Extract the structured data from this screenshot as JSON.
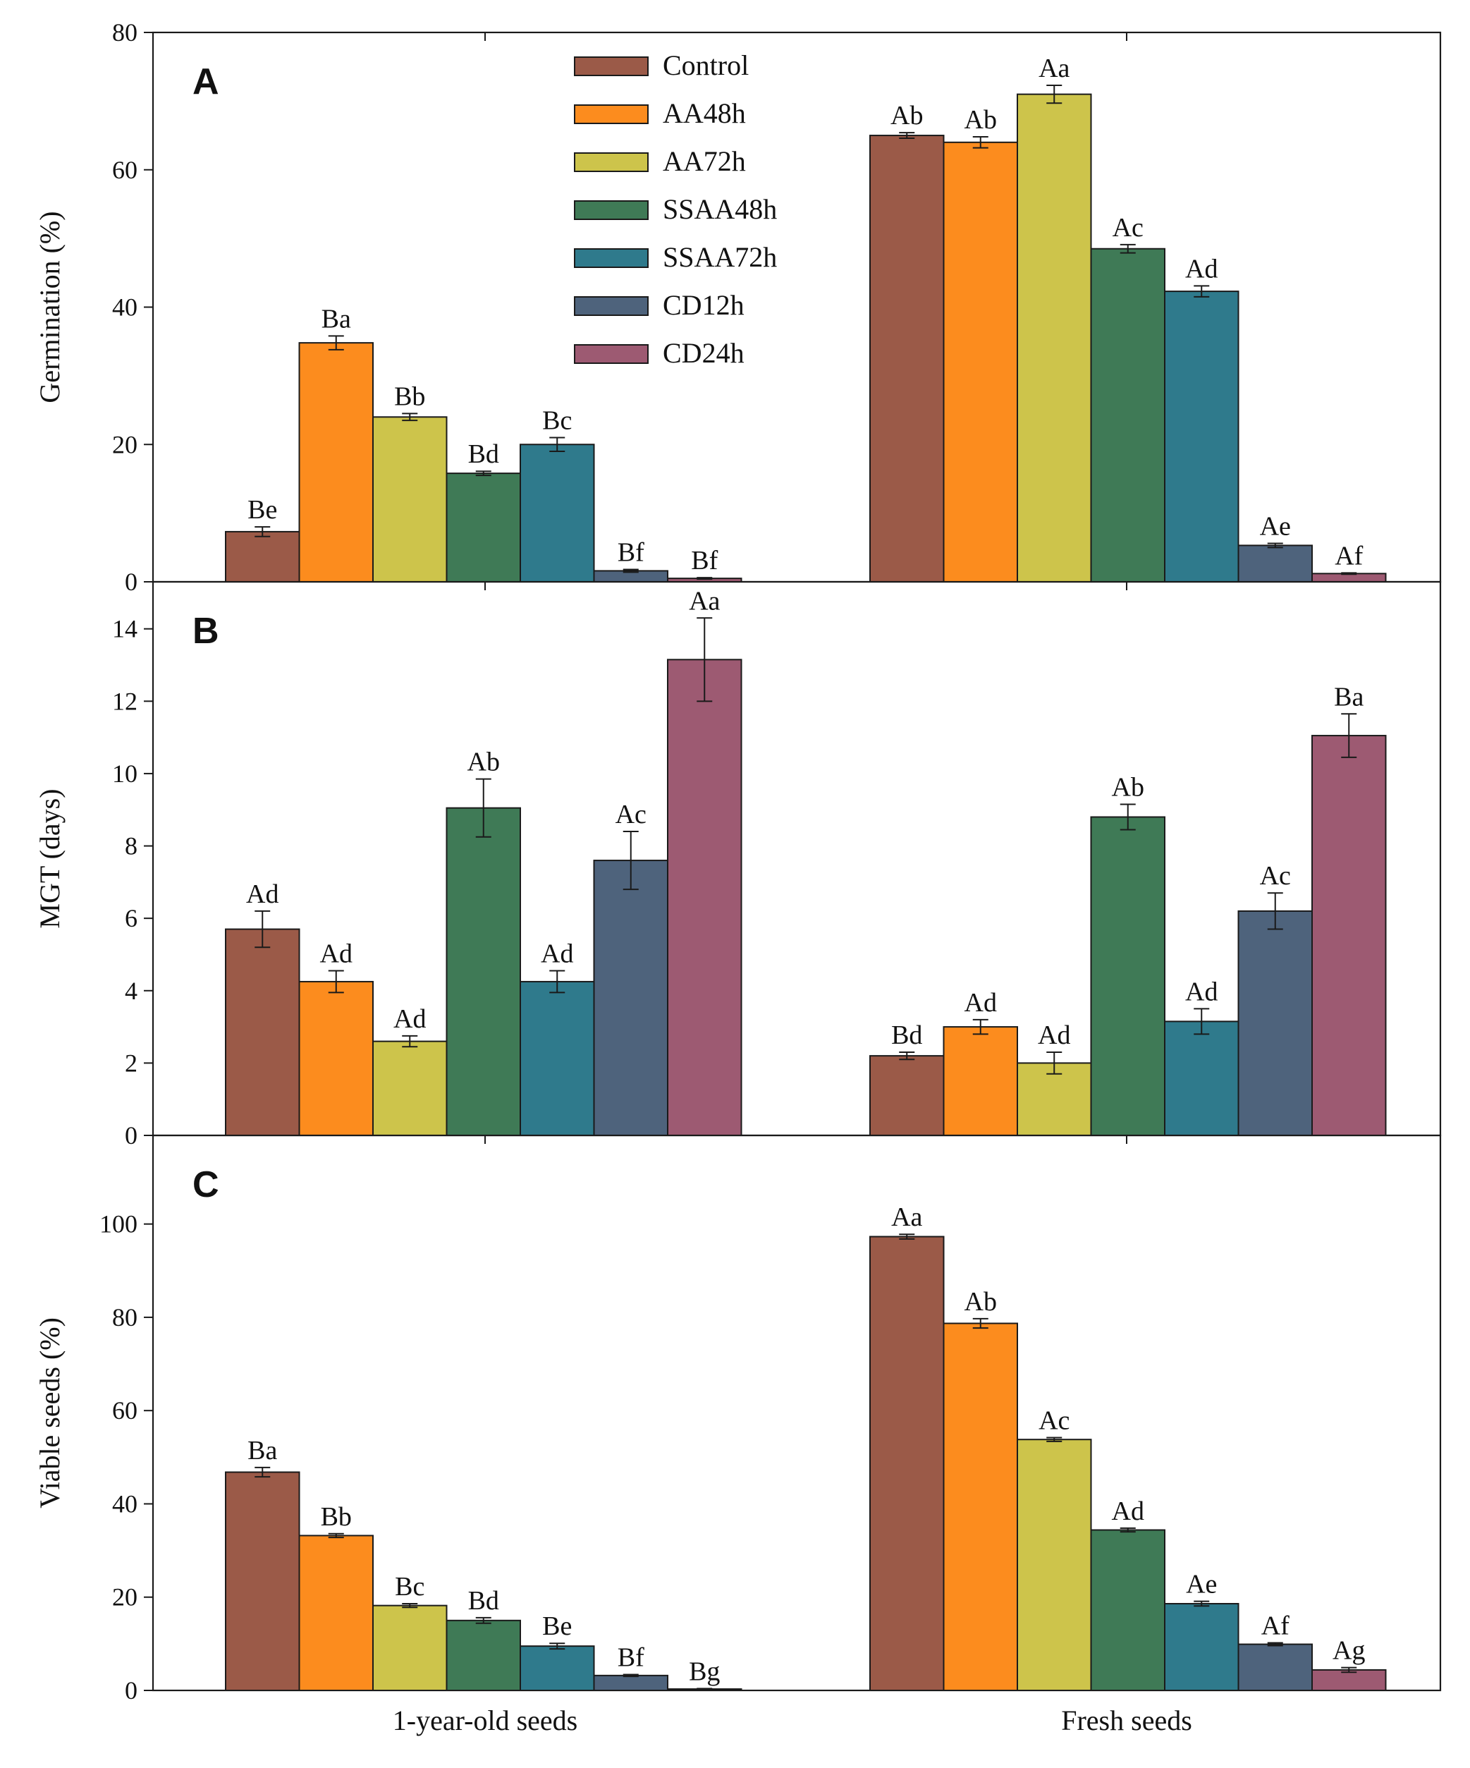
{
  "chart_data": [
    {
      "type": "bar",
      "panel": "A",
      "ylabel": "Germination (%)",
      "xlabel": "",
      "ylim": [
        0,
        80
      ],
      "yticks": [
        0,
        20,
        40,
        60,
        80
      ],
      "show_xlabels": false,
      "categories": [
        "1-year-old seeds",
        "Fresh seeds"
      ],
      "legend": {
        "placement": "top-center"
      },
      "series": [
        {
          "name": "Control",
          "values": [
            7.3,
            65.0
          ],
          "errors": [
            0.7,
            0.4
          ],
          "letters": [
            "Be",
            "Ab"
          ]
        },
        {
          "name": "AA48h",
          "values": [
            34.8,
            64.0
          ],
          "errors": [
            1.0,
            0.8
          ],
          "letters": [
            "Ba",
            "Ab"
          ]
        },
        {
          "name": "AA72h",
          "values": [
            24.0,
            71.0
          ],
          "errors": [
            0.5,
            1.3
          ],
          "letters": [
            "Bb",
            "Aa"
          ]
        },
        {
          "name": "SSAA48h",
          "values": [
            15.8,
            48.5
          ],
          "errors": [
            0.3,
            0.6
          ],
          "letters": [
            "Bd",
            "Ac"
          ]
        },
        {
          "name": "SSAA72h",
          "values": [
            20.0,
            42.3
          ],
          "errors": [
            1.0,
            0.8
          ],
          "letters": [
            "Bc",
            "Ad"
          ]
        },
        {
          "name": "CD12h",
          "values": [
            1.6,
            5.3
          ],
          "errors": [
            0.2,
            0.3
          ],
          "letters": [
            "Bf",
            "Ae"
          ]
        },
        {
          "name": "CD24h",
          "values": [
            0.5,
            1.2
          ],
          "errors": [
            0.1,
            0.1
          ],
          "letters": [
            "Bf",
            "Af"
          ]
        }
      ]
    },
    {
      "type": "bar",
      "panel": "B",
      "ylabel": "MGT (days)",
      "xlabel": "",
      "ylim": [
        0,
        15.3
      ],
      "yticks": [
        0,
        2,
        4,
        6,
        8,
        10,
        12,
        14
      ],
      "show_xlabels": false,
      "categories": [
        "1-year-old seeds",
        "Fresh seeds"
      ],
      "series": [
        {
          "name": "Control",
          "values": [
            5.7,
            2.2
          ],
          "errors": [
            0.5,
            0.1
          ],
          "letters": [
            "Ad",
            "Bd"
          ]
        },
        {
          "name": "AA48h",
          "values": [
            4.25,
            3.0
          ],
          "errors": [
            0.3,
            0.2
          ],
          "letters": [
            "Ad",
            "Ad"
          ]
        },
        {
          "name": "AA72h",
          "values": [
            2.6,
            2.0
          ],
          "errors": [
            0.15,
            0.3
          ],
          "letters": [
            "Ad",
            "Ad"
          ]
        },
        {
          "name": "SSAA48h",
          "values": [
            9.05,
            8.8
          ],
          "errors": [
            0.8,
            0.35
          ],
          "letters": [
            "Ab",
            "Ab"
          ]
        },
        {
          "name": "SSAA72h",
          "values": [
            4.25,
            3.15
          ],
          "errors": [
            0.3,
            0.35
          ],
          "letters": [
            "Ad",
            "Ad"
          ]
        },
        {
          "name": "CD12h",
          "values": [
            7.6,
            6.2
          ],
          "errors": [
            0.8,
            0.5
          ],
          "letters": [
            "Ac",
            "Ac"
          ]
        },
        {
          "name": "CD24h",
          "values": [
            13.15,
            11.05
          ],
          "errors": [
            1.15,
            0.6
          ],
          "letters": [
            "Aa",
            "Ba"
          ]
        }
      ]
    },
    {
      "type": "bar",
      "panel": "C",
      "ylabel": "Viable seeds (%)",
      "xlabel": "",
      "ylim": [
        0,
        119
      ],
      "yticks": [
        0,
        20,
        40,
        60,
        80,
        100
      ],
      "show_xlabels": true,
      "categories": [
        "1-year-old seeds",
        "Fresh seeds"
      ],
      "series": [
        {
          "name": "Control",
          "values": [
            46.8,
            97.3
          ],
          "errors": [
            1.0,
            0.5
          ],
          "letters": [
            "Ba",
            "Aa"
          ]
        },
        {
          "name": "AA48h",
          "values": [
            33.2,
            78.7
          ],
          "errors": [
            0.4,
            1.0
          ],
          "letters": [
            "Bb",
            "Ab"
          ]
        },
        {
          "name": "AA72h",
          "values": [
            18.2,
            53.8
          ],
          "errors": [
            0.4,
            0.4
          ],
          "letters": [
            "Bc",
            "Ac"
          ]
        },
        {
          "name": "SSAA48h",
          "values": [
            15.0,
            34.4
          ],
          "errors": [
            0.6,
            0.4
          ],
          "letters": [
            "Bd",
            "Ad"
          ]
        },
        {
          "name": "SSAA72h",
          "values": [
            9.5,
            18.6
          ],
          "errors": [
            0.6,
            0.5
          ],
          "letters": [
            "Be",
            "Ae"
          ]
        },
        {
          "name": "CD12h",
          "values": [
            3.2,
            9.9
          ],
          "errors": [
            0.2,
            0.3
          ],
          "letters": [
            "Bf",
            "Af"
          ]
        },
        {
          "name": "CD24h",
          "values": [
            0.3,
            4.4
          ],
          "errors": [
            0.1,
            0.5
          ],
          "letters": [
            "Bg",
            "Ag"
          ]
        }
      ]
    }
  ],
  "colors": {
    "Control": "#9b5a48",
    "AA48h": "#fc8c1e",
    "AA72h": "#cdc44b",
    "SSAA48h": "#3f7a56",
    "SSAA72h": "#2f7a8c",
    "CD12h": "#4e637c",
    "CD24h": "#9d5a72"
  }
}
